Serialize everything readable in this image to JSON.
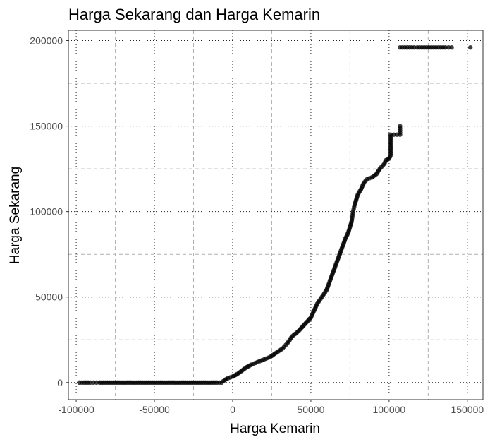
{
  "chart_data": {
    "type": "scatter",
    "title": "Harga Sekarang dan Harga Kemarin",
    "xlabel": "Harga Kemarin",
    "ylabel": "Harga Sekarang",
    "xlim": [
      -105000,
      160000
    ],
    "ylim": [
      -10000,
      206000
    ],
    "x_ticks": [
      -100000,
      -50000,
      0,
      50000,
      100000,
      150000
    ],
    "x_tick_labels": [
      "-100000",
      "-50000",
      "0",
      "50000",
      "100000",
      "150000"
    ],
    "y_ticks": [
      0,
      50000,
      100000,
      150000,
      200000
    ],
    "y_tick_labels": [
      "0",
      "50000",
      "100000",
      "150000",
      "200000"
    ],
    "grid": true,
    "legend": "none",
    "series": [
      {
        "points": [
          [
            -98000,
            0
          ],
          [
            -95000,
            0
          ],
          [
            -91000,
            0
          ],
          [
            -89000,
            0
          ],
          [
            -87000,
            0
          ],
          [
            -85000,
            0
          ],
          [
            -80000,
            0
          ],
          [
            -75000,
            0
          ],
          [
            -70000,
            0
          ],
          [
            -65000,
            0
          ],
          [
            -60000,
            0
          ],
          [
            -55000,
            0
          ],
          [
            -50000,
            0
          ],
          [
            -45000,
            0
          ],
          [
            -40000,
            0
          ],
          [
            -35000,
            0
          ],
          [
            -30000,
            0
          ],
          [
            -25000,
            0
          ],
          [
            -20000,
            0
          ],
          [
            -15000,
            0
          ],
          [
            -10000,
            0
          ],
          [
            -7000,
            0
          ],
          [
            -6000,
            800
          ],
          [
            -5000,
            1500
          ],
          [
            -3000,
            2500
          ],
          [
            0,
            3500
          ],
          [
            3000,
            5000
          ],
          [
            6000,
            7000
          ],
          [
            9000,
            9000
          ],
          [
            12000,
            10500
          ],
          [
            16000,
            12000
          ],
          [
            20000,
            13500
          ],
          [
            24000,
            15000
          ],
          [
            28000,
            17500
          ],
          [
            32000,
            20000
          ],
          [
            35000,
            23000
          ],
          [
            38000,
            27000
          ],
          [
            42000,
            30000
          ],
          [
            46000,
            34000
          ],
          [
            50000,
            38000
          ],
          [
            52000,
            42000
          ],
          [
            54000,
            46000
          ],
          [
            57000,
            50000
          ],
          [
            60000,
            54000
          ],
          [
            62000,
            59000
          ],
          [
            64000,
            64000
          ],
          [
            66000,
            69000
          ],
          [
            68000,
            74000
          ],
          [
            70000,
            79000
          ],
          [
            72000,
            84000
          ],
          [
            74000,
            88000
          ],
          [
            76000,
            94000
          ],
          [
            77000,
            100000
          ],
          [
            78000,
            104000
          ],
          [
            79000,
            107000
          ],
          [
            80000,
            110000
          ],
          [
            82000,
            113000
          ],
          [
            84000,
            117000
          ],
          [
            86000,
            119000
          ],
          [
            89000,
            120000
          ],
          [
            92000,
            122000
          ],
          [
            94000,
            125000
          ],
          [
            96000,
            127000
          ],
          [
            97000,
            128000
          ],
          [
            98000,
            130000
          ],
          [
            100000,
            131000
          ],
          [
            101000,
            133000
          ],
          [
            101000,
            145000
          ],
          [
            103000,
            145000
          ],
          [
            105000,
            145000
          ],
          [
            107000,
            145000
          ],
          [
            107000,
            150000
          ],
          [
            107000,
            196000
          ],
          [
            110000,
            196000
          ],
          [
            113000,
            196000
          ],
          [
            116000,
            196000
          ],
          [
            118000,
            196000
          ],
          [
            121000,
            196000
          ],
          [
            124000,
            196000
          ],
          [
            127000,
            196000
          ],
          [
            130000,
            196000
          ],
          [
            133000,
            196000
          ],
          [
            136000,
            196000
          ],
          [
            138000,
            196000
          ],
          [
            140000,
            196000
          ],
          [
            152000,
            196000
          ]
        ]
      }
    ]
  }
}
